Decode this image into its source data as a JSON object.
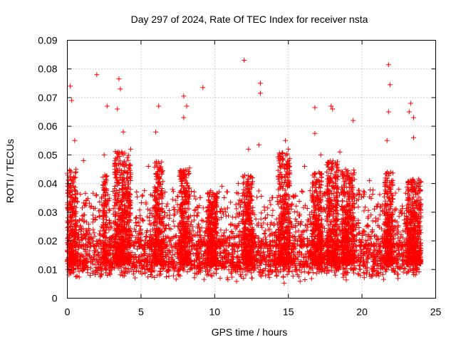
{
  "chart_data": {
    "type": "scatter",
    "title": "Day 297 of 2024, Rate Of TEC Index for receiver nsta",
    "xlabel": "GPS time / hours",
    "ylabel": "ROTI / TECUs",
    "xlim": [
      0,
      25
    ],
    "ylim": [
      0,
      0.09
    ],
    "x_ticks": [
      0,
      5,
      10,
      15,
      20,
      25
    ],
    "x_tick_labels": [
      "0",
      "5",
      "10",
      "15",
      "20",
      "25"
    ],
    "y_ticks": [
      0,
      0.01,
      0.02,
      0.03,
      0.04,
      0.05,
      0.06,
      0.07,
      0.08,
      0.09
    ],
    "y_tick_labels": [
      "0",
      "0.01",
      "0.02",
      "0.03",
      "0.04",
      "0.05",
      "0.06",
      "0.07",
      "0.08",
      "0.09"
    ],
    "grid": true,
    "marker": "+",
    "marker_color": "#ff0000",
    "x_data_range": [
      0,
      24
    ],
    "baseline_band": [
      0.005,
      0.02
    ],
    "peaks": [
      {
        "x": 0.2,
        "y": 0.074
      },
      {
        "x": 0.3,
        "y": 0.069
      },
      {
        "x": 0.5,
        "y": 0.055
      },
      {
        "x": 2.0,
        "y": 0.078
      },
      {
        "x": 2.7,
        "y": 0.067
      },
      {
        "x": 3.5,
        "y": 0.0765
      },
      {
        "x": 3.6,
        "y": 0.073
      },
      {
        "x": 3.4,
        "y": 0.066
      },
      {
        "x": 3.8,
        "y": 0.058
      },
      {
        "x": 4.3,
        "y": 0.052
      },
      {
        "x": 6.2,
        "y": 0.067
      },
      {
        "x": 6.0,
        "y": 0.058
      },
      {
        "x": 7.9,
        "y": 0.0705
      },
      {
        "x": 7.9,
        "y": 0.063
      },
      {
        "x": 8.1,
        "y": 0.067
      },
      {
        "x": 9.2,
        "y": 0.0735
      },
      {
        "x": 12.0,
        "y": 0.083
      },
      {
        "x": 13.1,
        "y": 0.075
      },
      {
        "x": 13.1,
        "y": 0.0715
      },
      {
        "x": 12.3,
        "y": 0.052
      },
      {
        "x": 13.0,
        "y": 0.0535
      },
      {
        "x": 14.8,
        "y": 0.055
      },
      {
        "x": 15.0,
        "y": 0.052
      },
      {
        "x": 16.8,
        "y": 0.0665
      },
      {
        "x": 16.8,
        "y": 0.0575
      },
      {
        "x": 17.9,
        "y": 0.067
      },
      {
        "x": 18.0,
        "y": 0.066
      },
      {
        "x": 19.4,
        "y": 0.062
      },
      {
        "x": 21.8,
        "y": 0.0815
      },
      {
        "x": 21.9,
        "y": 0.0745
      },
      {
        "x": 21.8,
        "y": 0.065
      },
      {
        "x": 21.7,
        "y": 0.055
      },
      {
        "x": 23.3,
        "y": 0.068
      },
      {
        "x": 23.2,
        "y": 0.065
      },
      {
        "x": 23.5,
        "y": 0.063
      },
      {
        "x": 23.5,
        "y": 0.056
      },
      {
        "x": 1.1,
        "y": 0.048
      },
      {
        "x": 2.5,
        "y": 0.05
      },
      {
        "x": 5.5,
        "y": 0.046
      },
      {
        "x": 10.5,
        "y": 0.039
      },
      {
        "x": 11.6,
        "y": 0.04
      },
      {
        "x": 16.1,
        "y": 0.046
      },
      {
        "x": 17.2,
        "y": 0.05
      },
      {
        "x": 18.5,
        "y": 0.051
      },
      {
        "x": 20.5,
        "y": 0.041
      },
      {
        "x": 22.5,
        "y": 0.038
      }
    ],
    "active_intervals": [
      {
        "x_start": 0.0,
        "x_end": 0.6,
        "y_max": 0.045
      },
      {
        "x_start": 2.4,
        "x_end": 2.7,
        "y_max": 0.043
      },
      {
        "x_start": 3.2,
        "x_end": 4.3,
        "y_max": 0.052
      },
      {
        "x_start": 5.9,
        "x_end": 6.5,
        "y_max": 0.048
      },
      {
        "x_start": 7.6,
        "x_end": 8.3,
        "y_max": 0.046
      },
      {
        "x_start": 9.5,
        "x_end": 10.2,
        "y_max": 0.038
      },
      {
        "x_start": 11.9,
        "x_end": 12.6,
        "y_max": 0.043
      },
      {
        "x_start": 14.3,
        "x_end": 15.1,
        "y_max": 0.051
      },
      {
        "x_start": 16.6,
        "x_end": 17.3,
        "y_max": 0.044
      },
      {
        "x_start": 17.6,
        "x_end": 18.4,
        "y_max": 0.048
      },
      {
        "x_start": 18.6,
        "x_end": 19.5,
        "y_max": 0.045
      },
      {
        "x_start": 21.5,
        "x_end": 22.1,
        "y_max": 0.044
      },
      {
        "x_start": 23.0,
        "x_end": 24.0,
        "y_max": 0.042
      }
    ]
  }
}
